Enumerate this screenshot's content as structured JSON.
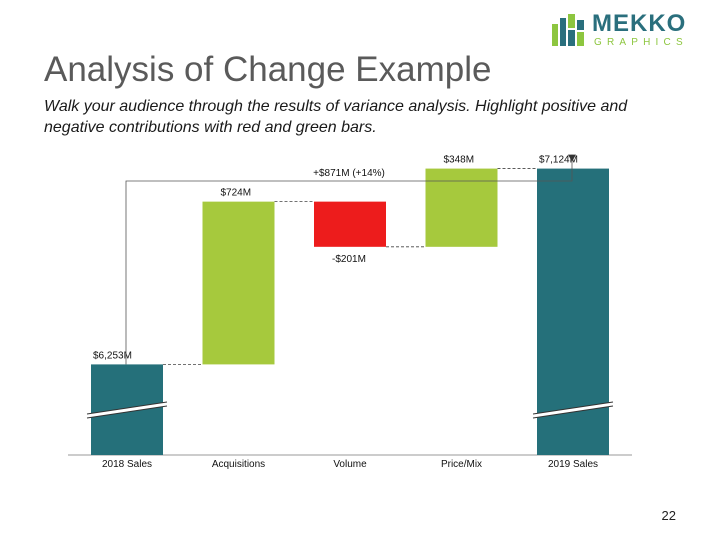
{
  "logo": {
    "word": "MEKKO",
    "sub": "GRAPHICS"
  },
  "title": "Analysis of Change Example",
  "subtitle": "Walk your audience through the results of variance analysis. Highlight positive and negative contributions with red and green bars.",
  "page_number": "22",
  "colors": {
    "total": "#25707a",
    "positive": "#a6c93d",
    "negative": "#ed1c1c",
    "logo_teal": "#2a6f7d",
    "logo_green": "#8dc63f"
  },
  "chart_data": {
    "type": "bar",
    "subtype": "waterfall",
    "categories": [
      "2018 Sales",
      "Acquisitions",
      "Volume",
      "Price/Mix",
      "2019 Sales"
    ],
    "values": [
      6253,
      724,
      -201,
      348,
      7124
    ],
    "kinds": [
      "total",
      "positive",
      "negative",
      "positive",
      "total"
    ],
    "value_labels": [
      "$6,253M",
      "$724M",
      "-$201M",
      "$348M",
      "$7,124M"
    ],
    "change_label": "+$871M (+14%)",
    "axis_break": true,
    "ylim": [
      5850,
      7220
    ],
    "grid": false
  }
}
